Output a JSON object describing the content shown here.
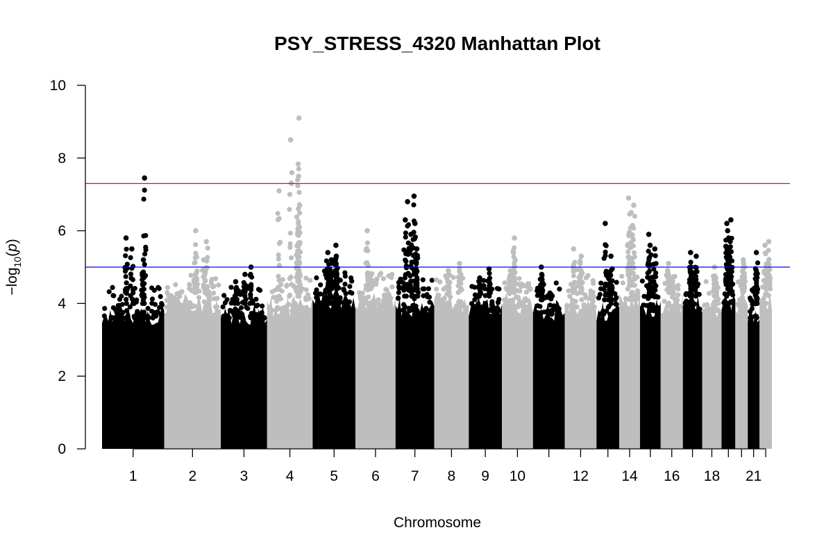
{
  "chart_data": {
    "type": "scatter",
    "subtype": "manhattan",
    "title": "PSY_STRESS_4320 Manhattan Plot",
    "xlabel": "Chromosome",
    "ylabel": "−log10(p)",
    "ylim": [
      0,
      10
    ],
    "y_ticks": [
      0,
      2,
      4,
      6,
      8,
      10
    ],
    "grid": false,
    "legend": "none",
    "colors": {
      "odd": "#000000",
      "even": "#bebebe",
      "genome_wide_line": "#ff0000",
      "suggestive_line": "#0000ff"
    },
    "thresholds": {
      "genome_wide": 7.3,
      "suggestive": 5.0
    },
    "chromosomes": [
      {
        "chr": 1,
        "label": "1",
        "color": "#000000",
        "floor": 4.0,
        "peaks": [
          7.45,
          5.8,
          5.5,
          5.2
        ]
      },
      {
        "chr": 2,
        "label": "2",
        "color": "#bebebe",
        "floor": 4.3,
        "peaks": [
          6.0,
          5.7,
          5.2,
          4.8
        ]
      },
      {
        "chr": 3,
        "label": "3",
        "color": "#000000",
        "floor": 4.0,
        "peaks": [
          5.0,
          4.8,
          4.6
        ]
      },
      {
        "chr": 4,
        "label": "4",
        "color": "#bebebe",
        "floor": 4.2,
        "peaks": [
          9.1,
          8.5,
          7.5,
          7.4,
          7.1,
          6.1,
          5.9
        ]
      },
      {
        "chr": 5,
        "label": "5",
        "color": "#000000",
        "floor": 4.4,
        "peaks": [
          5.6,
          5.4,
          5.3,
          5.2
        ]
      },
      {
        "chr": 6,
        "label": "6",
        "color": "#bebebe",
        "floor": 4.4,
        "peaks": [
          6.0,
          4.8
        ]
      },
      {
        "chr": 7,
        "label": "7",
        "color": "#000000",
        "floor": 4.2,
        "peaks": [
          6.95,
          6.8,
          6.3,
          6.2,
          5.9,
          5.5
        ]
      },
      {
        "chr": 8,
        "label": "8",
        "color": "#bebebe",
        "floor": 4.3,
        "peaks": [
          5.1,
          4.9
        ]
      },
      {
        "chr": 9,
        "label": "9",
        "color": "#000000",
        "floor": 4.2,
        "peaks": [
          4.95,
          4.7
        ]
      },
      {
        "chr": 10,
        "label": "10",
        "color": "#bebebe",
        "floor": 4.3,
        "peaks": [
          5.8,
          5.4,
          4.9
        ]
      },
      {
        "chr": 11,
        "label": "",
        "color": "#000000",
        "floor": 4.1,
        "peaks": [
          5.0,
          4.8
        ]
      },
      {
        "chr": 12,
        "label": "12",
        "color": "#bebebe",
        "floor": 4.3,
        "peaks": [
          5.5,
          5.3,
          5.1
        ]
      },
      {
        "chr": 13,
        "label": "",
        "color": "#000000",
        "floor": 4.1,
        "peaks": [
          6.2,
          5.3,
          4.8
        ]
      },
      {
        "chr": 14,
        "label": "14",
        "color": "#bebebe",
        "floor": 4.5,
        "peaks": [
          6.9,
          6.7,
          6.5,
          5.9
        ]
      },
      {
        "chr": 15,
        "label": "",
        "color": "#000000",
        "floor": 4.2,
        "peaks": [
          5.9,
          5.6,
          5.5
        ]
      },
      {
        "chr": 16,
        "label": "16",
        "color": "#bebebe",
        "floor": 4.3,
        "peaks": [
          5.1,
          4.7
        ]
      },
      {
        "chr": 17,
        "label": "",
        "color": "#000000",
        "floor": 4.2,
        "peaks": [
          5.4,
          5.3,
          5.0
        ]
      },
      {
        "chr": 18,
        "label": "18",
        "color": "#bebebe",
        "floor": 4.2,
        "peaks": [
          5.0,
          4.7
        ]
      },
      {
        "chr": 19,
        "label": "",
        "color": "#000000",
        "floor": 4.4,
        "peaks": [
          6.3,
          6.2,
          6.0,
          5.8
        ]
      },
      {
        "chr": 20,
        "label": "",
        "color": "#bebebe",
        "floor": 4.3,
        "peaks": [
          5.2,
          5.1
        ]
      },
      {
        "chr": 21,
        "label": "21",
        "color": "#000000",
        "floor": 4.0,
        "peaks": [
          5.4,
          4.9
        ]
      },
      {
        "chr": 22,
        "label": "",
        "color": "#bebebe",
        "floor": 4.4,
        "peaks": [
          5.7,
          5.6
        ]
      }
    ]
  }
}
